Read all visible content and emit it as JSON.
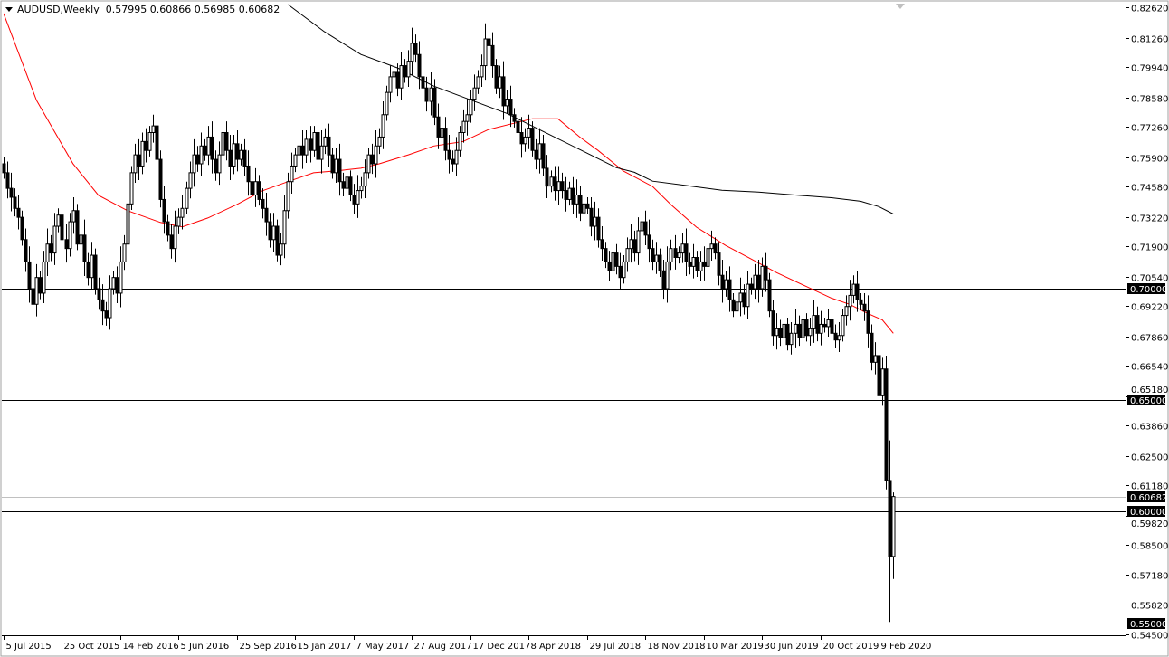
{
  "header": {
    "symbol_timeframe": "AUDUSD,Weekly",
    "ohlc": "0.57995 0.60866 0.56985 0.60682"
  },
  "colors": {
    "bull": "#ffffff",
    "bear": "#000000",
    "ma_fast": "#ff0000",
    "ma_slow": "#000000",
    "label_bg": "#000000",
    "label_text": "#ffffff",
    "bid_line": "#c0c0c0"
  },
  "chart_data": {
    "type": "candlestick",
    "symbol": "AUDUSD",
    "timeframe": "Weekly",
    "ylim": [
      0.545,
      0.8262
    ],
    "y_ticks": [
      "0.82620",
      "0.81260",
      "0.79940",
      "0.78580",
      "0.77260",
      "0.75900",
      "0.74580",
      "0.73220",
      "0.71900",
      "0.70540",
      "0.69220",
      "0.67860",
      "0.66540",
      "0.65180",
      "0.63860",
      "0.62500",
      "0.61180",
      "0.59820",
      "0.58500",
      "0.57180",
      "0.55820",
      "0.54500"
    ],
    "x_ticks": [
      {
        "bar": 0,
        "label": "5 Jul 2015"
      },
      {
        "bar": 16,
        "label": "25 Oct 2015"
      },
      {
        "bar": 32,
        "label": "14 Feb 2016"
      },
      {
        "bar": 48,
        "label": "5 Jun 2016"
      },
      {
        "bar": 64,
        "label": "25 Sep 2016"
      },
      {
        "bar": 80,
        "label": "15 Jan 2017"
      },
      {
        "bar": 96,
        "label": "7 May 2017"
      },
      {
        "bar": 112,
        "label": "27 Aug 2017"
      },
      {
        "bar": 128,
        "label": "17 Dec 2017"
      },
      {
        "bar": 144,
        "label": "8 Apr 2018"
      },
      {
        "bar": 160,
        "label": "29 Jul 2018"
      },
      {
        "bar": 176,
        "label": "18 Nov 2018"
      },
      {
        "bar": 192,
        "label": "10 Mar 2019"
      },
      {
        "bar": 208,
        "label": "30 Jun 2019"
      },
      {
        "bar": 224,
        "label": "20 Oct 2019"
      },
      {
        "bar": 240,
        "label": "9 Feb 2020"
      }
    ],
    "closes": [
      0.752,
      0.745,
      0.741,
      0.736,
      0.732,
      0.722,
      0.712,
      0.7,
      0.693,
      0.705,
      0.698,
      0.712,
      0.72,
      0.716,
      0.728,
      0.733,
      0.722,
      0.718,
      0.73,
      0.735,
      0.72,
      0.724,
      0.712,
      0.705,
      0.715,
      0.7,
      0.695,
      0.69,
      0.687,
      0.7,
      0.705,
      0.698,
      0.712,
      0.72,
      0.738,
      0.752,
      0.76,
      0.755,
      0.766,
      0.762,
      0.77,
      0.773,
      0.758,
      0.74,
      0.73,
      0.724,
      0.718,
      0.728,
      0.732,
      0.736,
      0.745,
      0.752,
      0.76,
      0.756,
      0.764,
      0.76,
      0.768,
      0.758,
      0.752,
      0.76,
      0.77,
      0.762,
      0.755,
      0.765,
      0.758,
      0.762,
      0.755,
      0.748,
      0.742,
      0.748,
      0.74,
      0.736,
      0.73,
      0.722,
      0.728,
      0.715,
      0.72,
      0.735,
      0.748,
      0.755,
      0.76,
      0.764,
      0.76,
      0.767,
      0.762,
      0.77,
      0.758,
      0.764,
      0.768,
      0.76,
      0.752,
      0.758,
      0.748,
      0.745,
      0.75,
      0.742,
      0.738,
      0.744,
      0.746,
      0.752,
      0.76,
      0.756,
      0.764,
      0.768,
      0.778,
      0.788,
      0.795,
      0.797,
      0.79,
      0.8,
      0.795,
      0.802,
      0.81,
      0.805,
      0.795,
      0.79,
      0.784,
      0.79,
      0.777,
      0.768,
      0.772,
      0.762,
      0.758,
      0.756,
      0.762,
      0.77,
      0.775,
      0.778,
      0.785,
      0.79,
      0.795,
      0.8,
      0.812,
      0.809,
      0.8,
      0.79,
      0.795,
      0.782,
      0.785,
      0.778,
      0.775,
      0.77,
      0.765,
      0.768,
      0.772,
      0.762,
      0.758,
      0.765,
      0.754,
      0.746,
      0.75,
      0.744,
      0.748,
      0.744,
      0.74,
      0.745,
      0.738,
      0.742,
      0.734,
      0.738,
      0.736,
      0.728,
      0.732,
      0.722,
      0.718,
      0.712,
      0.708,
      0.716,
      0.71,
      0.705,
      0.712,
      0.718,
      0.722,
      0.716,
      0.726,
      0.73,
      0.724,
      0.718,
      0.712,
      0.715,
      0.708,
      0.7,
      0.712,
      0.718,
      0.714,
      0.716,
      0.72,
      0.712,
      0.71,
      0.714,
      0.708,
      0.712,
      0.71,
      0.718,
      0.72,
      0.716,
      0.706,
      0.7,
      0.704,
      0.695,
      0.69,
      0.694,
      0.698,
      0.692,
      0.702,
      0.7,
      0.706,
      0.7,
      0.71,
      0.704,
      0.69,
      0.679,
      0.682,
      0.678,
      0.684,
      0.675,
      0.68,
      0.684,
      0.678,
      0.686,
      0.679,
      0.682,
      0.688,
      0.68,
      0.684,
      0.683,
      0.686,
      0.68,
      0.677,
      0.679,
      0.688,
      0.692,
      0.697,
      0.702,
      0.695,
      0.693,
      0.69,
      0.68,
      0.667,
      0.67,
      0.652,
      0.664,
      0.614,
      0.58,
      0.60682
    ],
    "last_bars": [
      {
        "bar": 242,
        "open": 0.664,
        "high": 0.67,
        "low": 0.61,
        "close": 0.614
      },
      {
        "bar": 243,
        "open": 0.614,
        "high": 0.632,
        "low": 0.5506,
        "close": 0.58
      },
      {
        "bar": 244,
        "open": 0.57995,
        "high": 0.60866,
        "low": 0.56985,
        "close": 0.60682
      }
    ],
    "ma_fast": [
      [
        0,
        0.8234
      ],
      [
        9,
        0.7845
      ],
      [
        19,
        0.7561
      ],
      [
        26,
        0.7419
      ],
      [
        34,
        0.735
      ],
      [
        43,
        0.7297
      ],
      [
        49,
        0.7277
      ],
      [
        56,
        0.7317
      ],
      [
        64,
        0.7378
      ],
      [
        71,
        0.7439
      ],
      [
        78,
        0.748
      ],
      [
        85,
        0.752
      ],
      [
        91,
        0.7528
      ],
      [
        98,
        0.754
      ],
      [
        103,
        0.756
      ],
      [
        111,
        0.76
      ],
      [
        118,
        0.764
      ],
      [
        126,
        0.766
      ],
      [
        133,
        0.7714
      ],
      [
        140,
        0.7742
      ],
      [
        145,
        0.7762
      ],
      [
        152,
        0.7762
      ],
      [
        158,
        0.768
      ],
      [
        163,
        0.762
      ],
      [
        170,
        0.7527
      ],
      [
        178,
        0.7458
      ],
      [
        183,
        0.7377
      ],
      [
        190,
        0.7276
      ],
      [
        198,
        0.7194
      ],
      [
        205,
        0.7133
      ],
      [
        212,
        0.7072
      ],
      [
        220,
        0.7011
      ],
      [
        227,
        0.6958
      ],
      [
        232,
        0.693
      ],
      [
        237,
        0.6889
      ],
      [
        241,
        0.686
      ],
      [
        244,
        0.68
      ]
    ],
    "ma_slow": [
      [
        78,
        0.8274
      ],
      [
        88,
        0.8152
      ],
      [
        98,
        0.805
      ],
      [
        108,
        0.799
      ],
      [
        118,
        0.7908
      ],
      [
        128,
        0.7847
      ],
      [
        138,
        0.7786
      ],
      [
        148,
        0.7705
      ],
      [
        158,
        0.7624
      ],
      [
        168,
        0.7543
      ],
      [
        173,
        0.7522
      ],
      [
        178,
        0.7482
      ],
      [
        188,
        0.7461
      ],
      [
        197,
        0.7441
      ],
      [
        207,
        0.7433
      ],
      [
        217,
        0.742
      ],
      [
        227,
        0.7408
      ],
      [
        235,
        0.7392
      ],
      [
        240,
        0.7368
      ],
      [
        244,
        0.7335
      ]
    ],
    "horizontal_lines": [
      {
        "price": 0.7,
        "label": "0.70000"
      },
      {
        "price": 0.65,
        "label": "0.65000"
      },
      {
        "price": 0.6,
        "label": "0.60000"
      },
      {
        "price": 0.55,
        "label": "0.55000"
      }
    ],
    "bid": {
      "price": 0.60682,
      "label": "0.60682"
    }
  }
}
